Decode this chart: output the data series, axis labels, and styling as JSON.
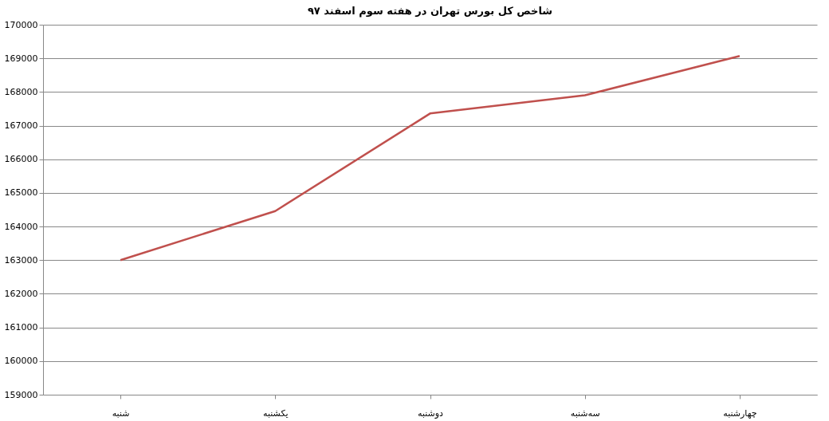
{
  "chart_data": {
    "type": "line",
    "title": "شاخص کل بورس تهران در هفته سوم اسفند ۹۷",
    "categories": [
      "شنبه",
      "یکشنبه",
      "دوشنبه",
      "سه‌شنبه",
      "چهارشنبه"
    ],
    "series": [
      {
        "color": "#c0504d",
        "values": [
          163000,
          164460,
          167360,
          167900,
          169070
        ]
      }
    ],
    "ylim": [
      159000,
      170000
    ],
    "yticks": [
      159000,
      160000,
      161000,
      162000,
      163000,
      164000,
      165000,
      166000,
      167000,
      168000,
      169000,
      170000
    ],
    "grid": "y",
    "marker": "none",
    "line_style": "solid"
  }
}
